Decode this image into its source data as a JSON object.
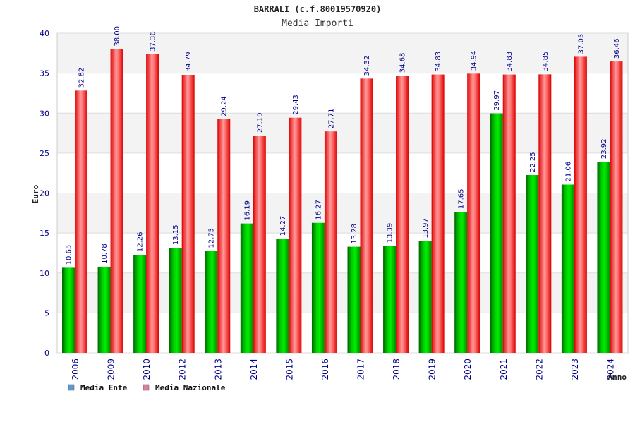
{
  "chart_data": {
    "type": "bar",
    "title": "BARRALI (c.f.80019570920)",
    "subtitle": "Media Importi",
    "xlabel": "Anno",
    "ylabel": "Euro",
    "ylim": [
      0,
      40
    ],
    "yticks": [
      0,
      5,
      10,
      15,
      20,
      25,
      30,
      35,
      40
    ],
    "grid": true,
    "legend_position": "bottom-left",
    "categories": [
      "2006",
      "2009",
      "2010",
      "2012",
      "2013",
      "2014",
      "2015",
      "2016",
      "2017",
      "2018",
      "2019",
      "2020",
      "2021",
      "2022",
      "2023",
      "2024"
    ],
    "series": [
      {
        "name": "Media Ente",
        "color": "#00aa00",
        "legend_color": "#5b9bd5",
        "values": [
          10.65,
          10.78,
          12.26,
          13.15,
          12.75,
          16.19,
          14.27,
          16.27,
          13.28,
          13.39,
          13.97,
          17.65,
          29.97,
          22.25,
          21.06,
          23.92
        ],
        "labels": [
          "10.65",
          "10.78",
          "12.26",
          "13.15",
          "12.75",
          "16.19",
          "14.27",
          "16.27",
          "13.28",
          "13.39",
          "13.97",
          "17.65",
          "29.97",
          "22.25",
          "21.06",
          "23.92"
        ]
      },
      {
        "name": "Media Nazionale",
        "color": "#ee1111",
        "legend_color": "#d97fa3",
        "values": [
          32.82,
          38.0,
          37.36,
          34.79,
          29.24,
          27.19,
          29.43,
          27.71,
          34.32,
          34.68,
          34.83,
          34.94,
          34.83,
          34.85,
          37.05,
          36.46
        ],
        "labels": [
          "32.82",
          "38.00",
          "37.36",
          "34.79",
          "29.24",
          "27.19",
          "29.43",
          "27.71",
          "34.32",
          "34.68",
          "34.83",
          "34.94",
          "34.83",
          "34.85",
          "37.05",
          "36.46"
        ]
      }
    ]
  }
}
